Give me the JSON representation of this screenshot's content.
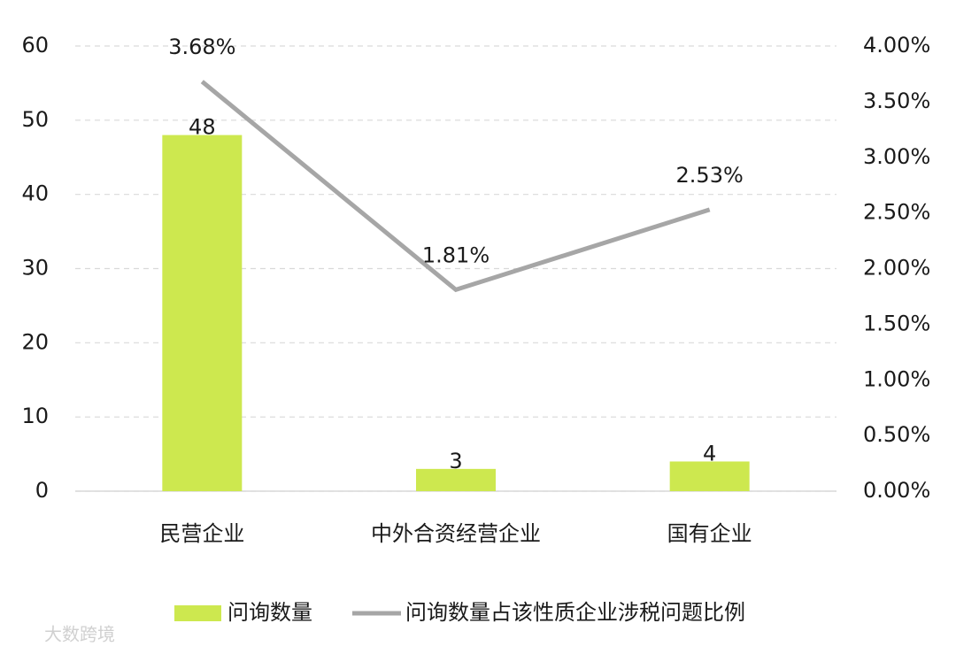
{
  "chart_data": {
    "type": "bar-line",
    "categories": [
      "民营企业",
      "中外合资经营企业",
      "国有企业"
    ],
    "series": [
      {
        "name": "问询数量",
        "type": "bar",
        "color": "#cde84f",
        "values": [
          48,
          3,
          4
        ]
      },
      {
        "name": "问询数量占该性质企业涉税问题比例",
        "type": "line",
        "axis": "y2",
        "color": "#a6a6a6",
        "values": [
          3.68,
          1.81,
          2.53
        ],
        "value_labels": [
          "3.68%",
          "1.81%",
          "2.53%"
        ]
      }
    ],
    "ylim": [
      0,
      60
    ],
    "yticks": [
      0,
      10,
      20,
      30,
      40,
      50,
      60
    ],
    "y2lim": [
      0,
      4
    ],
    "y2ticks": [
      {
        "value": 0,
        "label": "0.00%"
      },
      {
        "value": 0.5,
        "label": "0.50%"
      },
      {
        "value": 1,
        "label": "1.00%"
      },
      {
        "value": 1.5,
        "label": "1.50%"
      },
      {
        "value": 2,
        "label": "2.00%"
      },
      {
        "value": 2.5,
        "label": "2.50%"
      },
      {
        "value": 3,
        "label": "3.00%"
      },
      {
        "value": 3.5,
        "label": "3.50%"
      },
      {
        "value": 4,
        "label": "4.00%"
      }
    ],
    "grid": true,
    "legend": "bottom",
    "watermark": "大数跨境"
  }
}
